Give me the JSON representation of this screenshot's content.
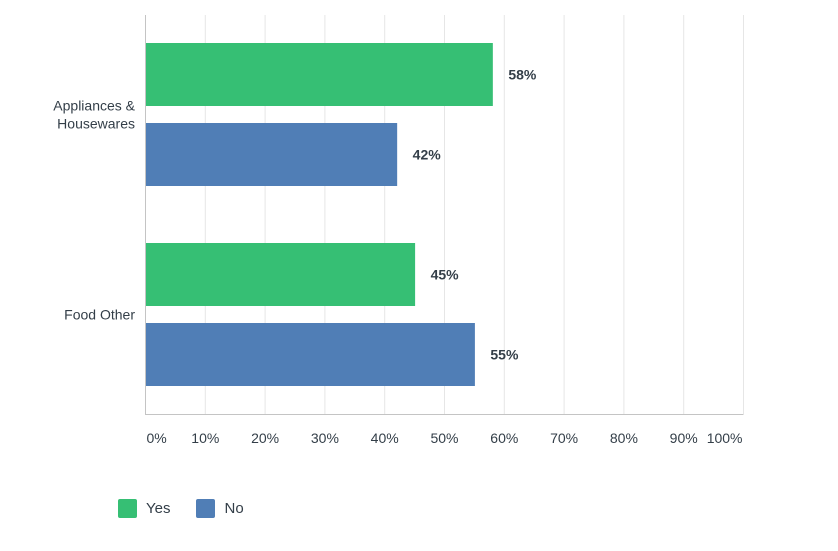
{
  "chart_data": {
    "type": "bar",
    "orientation": "horizontal",
    "categories": [
      [
        "Appliances &",
        "Housewares"
      ],
      [
        "Food Other"
      ]
    ],
    "series": [
      {
        "name": "Yes",
        "color": "#36bf74",
        "values": [
          58,
          45
        ],
        "labels": [
          "58%",
          "45%"
        ]
      },
      {
        "name": "No",
        "color": "#507eb6",
        "values": [
          42,
          55
        ],
        "labels": [
          "42%",
          "55%"
        ]
      }
    ],
    "x_ticks": [
      0,
      10,
      20,
      30,
      40,
      50,
      60,
      70,
      80,
      90,
      100
    ],
    "x_tick_labels": [
      "0%",
      "10%",
      "20%",
      "30%",
      "40%",
      "50%",
      "60%",
      "70%",
      "80%",
      "90%",
      "100%"
    ],
    "xlim": [
      0,
      100
    ],
    "grid": true,
    "legend_position": "bottom-left"
  }
}
